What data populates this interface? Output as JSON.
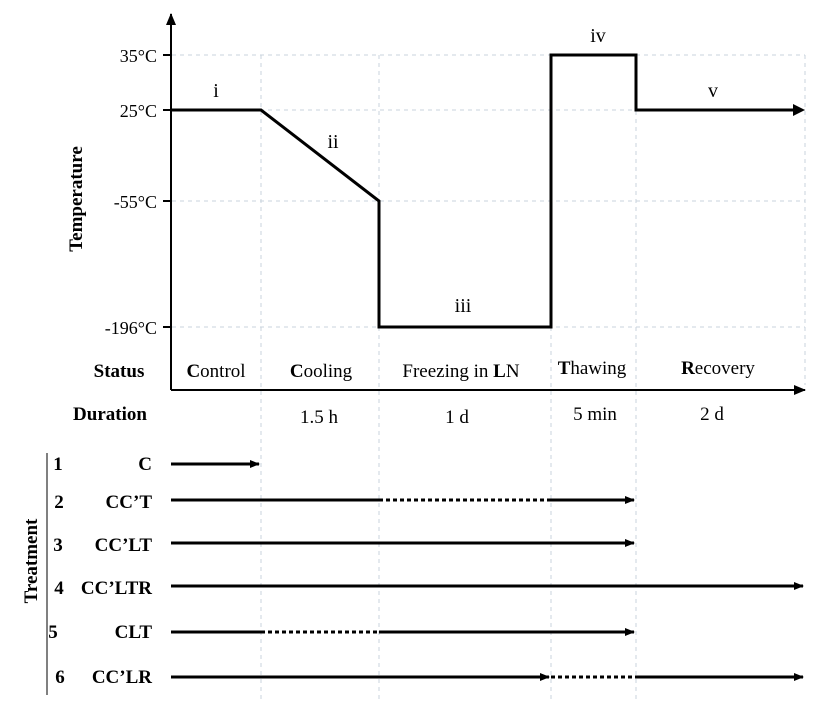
{
  "temperature_axis": {
    "label": "Temperature",
    "ticks": [
      "35°C",
      "25°C",
      "-55°C",
      "-196°C"
    ]
  },
  "stage_markers": [
    "i",
    "ii",
    "iii",
    "iv",
    "v"
  ],
  "status": {
    "label": "Status",
    "items": [
      {
        "initial": "C",
        "rest": "ontrol"
      },
      {
        "initial": "C",
        "rest": "ooling"
      },
      {
        "prefix": "Freezing in ",
        "initial": "L",
        "rest": "N"
      },
      {
        "initial": "T",
        "rest": "hawing"
      },
      {
        "initial": "R",
        "rest": "ecovery"
      }
    ]
  },
  "duration": {
    "label": "Duration",
    "items": [
      "1.5 h",
      "1 d",
      "5 min",
      "2 d"
    ]
  },
  "treatment": {
    "label": "Treatment",
    "rows": [
      {
        "number": "1",
        "code": "C"
      },
      {
        "number": "2",
        "code": "CC’T"
      },
      {
        "number": "3",
        "code": "CC’LT"
      },
      {
        "number": "4",
        "code": "CC’LTR"
      },
      {
        "number": "5",
        "code": "CLT"
      },
      {
        "number": "6",
        "code": "CC’LR"
      }
    ]
  }
}
